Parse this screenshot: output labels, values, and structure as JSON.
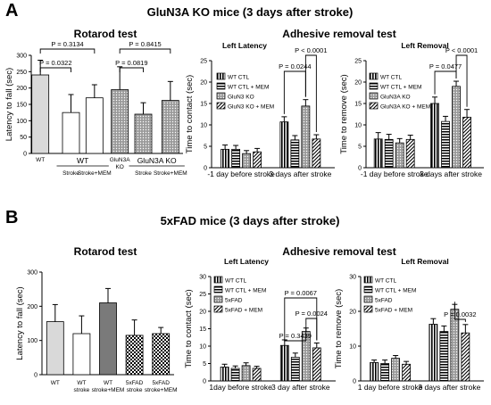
{
  "panels": [
    {
      "letter": "A",
      "title": "GluN3A KO mice (3 days after stroke)"
    },
    {
      "letter": "B",
      "title": "5xFAD mice (3 days after stroke)"
    }
  ],
  "colors": {
    "light_gray": "#d9d9d9",
    "white": "#ffffff",
    "dark_gray": "#7a7a7a",
    "black": "#000000",
    "pattern": "#000000"
  },
  "chart_data": [
    {
      "id": "A-rotarod",
      "type": "bar",
      "title": "Rotarod test",
      "ylabel": "Latency to fall (sec)",
      "ylim": [
        0,
        300
      ],
      "yticks": [
        0,
        50,
        100,
        150,
        200,
        250,
        300
      ],
      "categories": [
        "WT",
        "Stroke",
        "Stroke+MEM",
        "GluN3A KO",
        "Stroke",
        "Stroke+MEM"
      ],
      "group_labels": [
        "WT",
        "GluN3A KO"
      ],
      "values": [
        240,
        125,
        170,
        195,
        120,
        162
      ],
      "errors": [
        45,
        55,
        40,
        70,
        35,
        58
      ],
      "fills": [
        "light",
        "white",
        "white",
        "dots",
        "dots",
        "dots"
      ],
      "comparisons": [
        {
          "label": "P = 0.0322",
          "from": 0,
          "to": 1
        },
        {
          "label": "P = 0.3134",
          "from": 0,
          "to": 2
        },
        {
          "label": "P = 0.0819",
          "from": 3,
          "to": 4
        },
        {
          "label": "P = 0.8415",
          "from": 3,
          "to": 5
        }
      ]
    },
    {
      "id": "A-latency",
      "type": "bar",
      "title": "Left Latency",
      "super_title": "Adhesive removal test",
      "ylabel": "Time to contact (sec)",
      "ylim": [
        0,
        25
      ],
      "yticks": [
        0,
        5,
        10,
        15,
        20,
        25
      ],
      "x": [
        "-1 day before stroke",
        "3 days after stroke"
      ],
      "series": [
        {
          "name": "WT CTL",
          "fill": "vlines",
          "values": [
            4.3,
            10.7
          ],
          "errors": [
            1.0,
            1.2
          ]
        },
        {
          "name": "WT CTL + MEM",
          "fill": "hlines",
          "values": [
            4.3,
            6.5
          ],
          "errors": [
            0.9,
            1.0
          ]
        },
        {
          "name": "GluN3 KO",
          "fill": "dots",
          "values": [
            3.3,
            14.4
          ],
          "errors": [
            0.7,
            1.5
          ]
        },
        {
          "name": "GluN3 KO + MEM",
          "fill": "diag",
          "values": [
            3.7,
            6.7
          ],
          "errors": [
            0.8,
            1.0
          ]
        }
      ],
      "comparisons": [
        {
          "label": "P = 0.0244",
          "group": 1,
          "from": 0,
          "to": 2
        },
        {
          "label": "P < 0.0001",
          "group": 1,
          "from": 2,
          "to": 3
        }
      ]
    },
    {
      "id": "A-removal",
      "type": "bar",
      "title": "Left Removal",
      "ylabel": "Time to remove (sec)",
      "ylim": [
        0,
        25
      ],
      "yticks": [
        0,
        5,
        10,
        15,
        20,
        25
      ],
      "x": [
        "-1 day before stroke",
        "3 days after stroke"
      ],
      "series": [
        {
          "name": "WT CTL",
          "fill": "vlines",
          "values": [
            6.7,
            15.0
          ],
          "errors": [
            1.5,
            1.5
          ]
        },
        {
          "name": "WT CTL + MEM",
          "fill": "hlines",
          "values": [
            6.6,
            10.8
          ],
          "errors": [
            1.2,
            1.2
          ]
        },
        {
          "name": "GluN3A KO",
          "fill": "dots",
          "values": [
            5.8,
            19.0
          ],
          "errors": [
            1.0,
            1.2
          ]
        },
        {
          "name": "GluN3A KO + MEM",
          "fill": "diag",
          "values": [
            6.6,
            11.8
          ],
          "errors": [
            1.0,
            1.8
          ]
        }
      ],
      "comparisons": [
        {
          "label": "P = 0.0477",
          "group": 1,
          "from": 0,
          "to": 2
        },
        {
          "label": "P < 0.0001",
          "group": 1,
          "from": 2,
          "to": 3
        }
      ]
    },
    {
      "id": "B-rotarod",
      "type": "bar",
      "title": "Rotarod test",
      "ylabel": "Latency to fall (sec)",
      "ylim": [
        0,
        300
      ],
      "yticks": [
        0,
        100,
        200,
        300
      ],
      "categories": [
        "WT",
        "WT stroke",
        "WT stroke+MEM",
        "5xFAD stroke",
        "5xFAD stroke+MEM"
      ],
      "values": [
        155,
        120,
        210,
        115,
        120
      ],
      "errors": [
        50,
        52,
        42,
        45,
        18
      ],
      "fills": [
        "light",
        "white",
        "dark",
        "check",
        "check"
      ],
      "comparisons": []
    },
    {
      "id": "B-latency",
      "type": "bar",
      "title": "Left Latency",
      "super_title": "Adhesive removal test",
      "ylabel": "Time to contact (sec)",
      "ylim": [
        0,
        30
      ],
      "yticks": [
        0,
        5,
        10,
        15,
        20,
        25,
        30
      ],
      "x": [
        "1day before stroke",
        "3 day after stroke"
      ],
      "series": [
        {
          "name": "WT CTL",
          "fill": "vlines",
          "values": [
            4.0,
            10.2
          ],
          "errors": [
            0.8,
            1.6
          ]
        },
        {
          "name": "WT CTL + MEM",
          "fill": "hlines",
          "values": [
            3.6,
            6.8
          ],
          "errors": [
            0.7,
            1.2
          ]
        },
        {
          "name": "5xFAD",
          "fill": "dots",
          "values": [
            4.4,
            14.2
          ],
          "errors": [
            0.8,
            1.0
          ]
        },
        {
          "name": "5xFAD + MEM",
          "fill": "diag",
          "values": [
            3.6,
            9.5
          ],
          "errors": [
            0.6,
            1.4
          ]
        }
      ],
      "comparisons": [
        {
          "label": "P = 0.0067",
          "group": 1,
          "from": 0,
          "to": 3
        },
        {
          "label": "P = 0.0024",
          "group": 1,
          "from": 2,
          "to": 3
        },
        {
          "label": "P = 0.3439",
          "group": 1,
          "from": 0,
          "to": 2
        }
      ]
    },
    {
      "id": "B-removal",
      "type": "bar",
      "title": "Left Removal",
      "ylabel": "Time to remove (sec)",
      "ylim": [
        0,
        30
      ],
      "yticks": [
        0,
        10,
        20,
        30
      ],
      "x": [
        "1 day before stroke",
        "3 days after stroke"
      ],
      "series": [
        {
          "name": "WT CTL",
          "fill": "vlines",
          "values": [
            5.3,
            16.3
          ],
          "errors": [
            0.7,
            1.6
          ]
        },
        {
          "name": "WT CTL + MEM",
          "fill": "hlines",
          "values": [
            5.0,
            14.2
          ],
          "errors": [
            1.0,
            1.6
          ]
        },
        {
          "name": "5xFAD",
          "fill": "dots",
          "values": [
            6.5,
            20.6
          ],
          "errors": [
            0.8,
            1.4
          ]
        },
        {
          "name": "5xFAD + MEM",
          "fill": "diag",
          "values": [
            4.8,
            13.8
          ],
          "errors": [
            0.8,
            2.4
          ]
        }
      ],
      "comparisons": [
        {
          "label": "P = 0.0032",
          "group": 1,
          "from": 2,
          "to": 3
        }
      ]
    }
  ]
}
